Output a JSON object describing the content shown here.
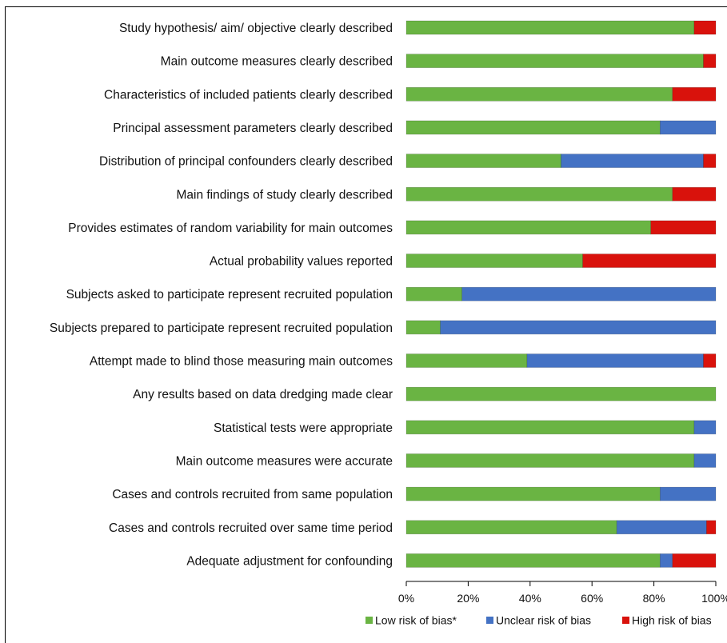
{
  "chart_data": {
    "type": "bar",
    "orientation": "horizontal",
    "stacked": true,
    "categories": [
      "Study hypothesis/ aim/ objective clearly described",
      "Main outcome measures clearly described",
      "Characteristics of included patients clearly described",
      "Principal assessment parameters clearly described",
      "Distribution of principal confounders clearly described",
      "Main findings of study clearly described",
      "Provides estimates of random variability for main outcomes",
      "Actual probability values reported",
      "Subjects asked to participate represent recruited population",
      "Subjects prepared to participate represent recruited population",
      "Attempt made to blind those measuring main outcomes",
      "Any results based on data dredging made clear",
      "Statistical tests were appropriate",
      "Main outcome measures were accurate",
      "Cases and controls recruited from same population",
      "Cases and controls recruited over same time period",
      "Adequate adjustment for confounding"
    ],
    "series": [
      {
        "name": "Low risk of bias*",
        "color": "#6ab443",
        "values": [
          93,
          96,
          86,
          82,
          50,
          86,
          79,
          57,
          18,
          11,
          39,
          100,
          93,
          93,
          82,
          68,
          82
        ]
      },
      {
        "name": "Unclear risk of bias",
        "color": "#4472c4",
        "values": [
          0,
          0,
          0,
          18,
          46,
          0,
          0,
          0,
          82,
          89,
          57,
          0,
          7,
          7,
          18,
          29,
          4
        ]
      },
      {
        "name": "High risk of bias",
        "color": "#d9120c",
        "values": [
          7,
          4,
          14,
          0,
          4,
          14,
          21,
          43,
          0,
          0,
          4,
          0,
          0,
          0,
          0,
          3,
          14
        ]
      }
    ],
    "xlim": [
      0,
      100
    ],
    "xticks": [
      "0%",
      "20%",
      "40%",
      "60%",
      "80%",
      "100%"
    ],
    "xtick_values": [
      0,
      20,
      40,
      60,
      80,
      100
    ],
    "grid": false,
    "legend_position": "bottom"
  }
}
